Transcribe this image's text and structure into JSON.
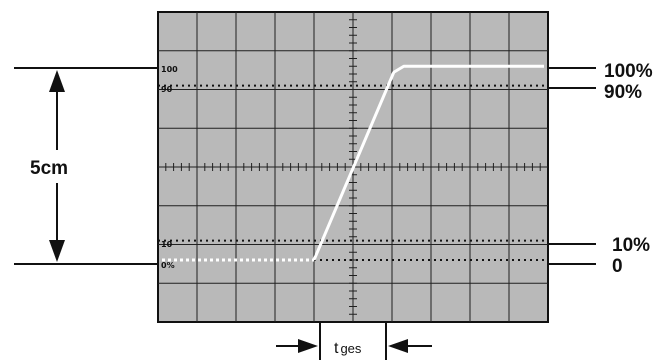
{
  "screen": {
    "vertical_divisions": 8,
    "horizontal_divisions": 10,
    "ticks_per_division": 5,
    "background_color": "#b9b9b9",
    "grid_color": "#202020",
    "trace_color": "#ffffff"
  },
  "screen_labels": {
    "top": "100",
    "upper": "90",
    "lower": "10",
    "bottom": "0%"
  },
  "right_labels": {
    "hundred": "100%",
    "ninety": "90%",
    "ten": "10%",
    "zero": "0"
  },
  "amplitude_label": "5cm",
  "rise_time_label": {
    "main": "t",
    "subscript": "ges"
  },
  "waveform": {
    "low_level_percent": 0,
    "high_level_percent": 100,
    "ramp_start_div": 4.0,
    "ramp_end_div": 6.2,
    "level_0_div_from_top": 6.4,
    "level_100_div_from_top": 1.4
  }
}
